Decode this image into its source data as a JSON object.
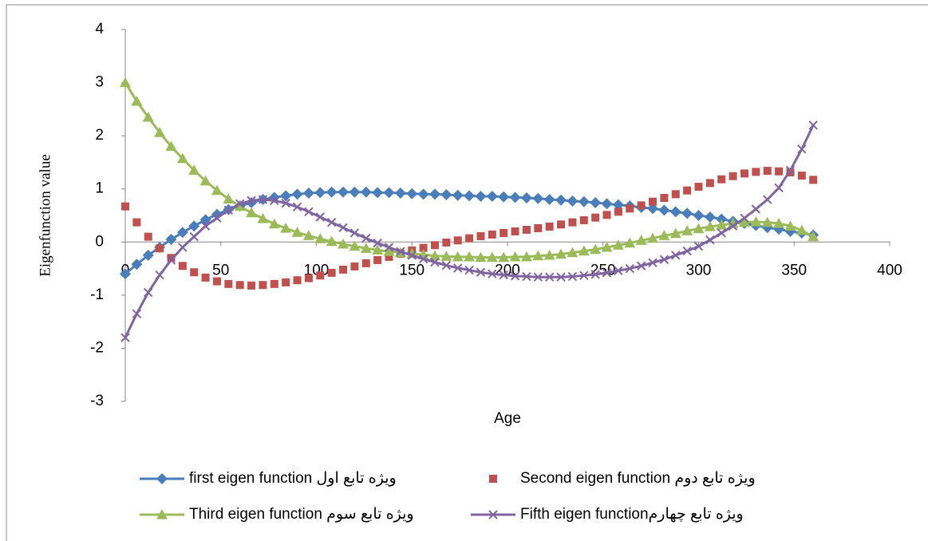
{
  "chart_data": {
    "type": "line",
    "x_label": "Age",
    "y_label": "Eigenfunction value",
    "xlim": [
      0,
      400
    ],
    "xticks": [
      0,
      50,
      100,
      150,
      200,
      250,
      300,
      350,
      400
    ],
    "ylim": [
      -3,
      4
    ],
    "yticks": [
      -3,
      -2,
      -1,
      0,
      1,
      2,
      3,
      4
    ],
    "x": [
      0,
      6,
      12,
      18,
      24,
      30,
      36,
      42,
      48,
      54,
      60,
      66,
      72,
      78,
      84,
      90,
      96,
      102,
      108,
      114,
      120,
      126,
      132,
      138,
      144,
      150,
      156,
      162,
      168,
      174,
      180,
      186,
      192,
      198,
      204,
      210,
      216,
      222,
      228,
      234,
      240,
      246,
      252,
      258,
      264,
      270,
      276,
      282,
      288,
      294,
      300,
      306,
      312,
      318,
      324,
      330,
      336,
      342,
      348,
      354,
      360
    ],
    "series": [
      {
        "name": "first eigen function ويژه تابع اول",
        "color": "#4a7ebb",
        "marker": "diamond",
        "line": true,
        "values": [
          -0.6,
          -0.42,
          -0.25,
          -0.1,
          0.05,
          0.18,
          0.3,
          0.42,
          0.52,
          0.61,
          0.68,
          0.74,
          0.8,
          0.84,
          0.87,
          0.9,
          0.92,
          0.93,
          0.94,
          0.94,
          0.94,
          0.94,
          0.93,
          0.93,
          0.92,
          0.91,
          0.9,
          0.9,
          0.89,
          0.88,
          0.87,
          0.86,
          0.86,
          0.85,
          0.84,
          0.83,
          0.82,
          0.8,
          0.79,
          0.77,
          0.76,
          0.74,
          0.72,
          0.7,
          0.68,
          0.65,
          0.63,
          0.6,
          0.57,
          0.54,
          0.5,
          0.47,
          0.43,
          0.39,
          0.35,
          0.31,
          0.27,
          0.24,
          0.2,
          0.17,
          0.13
        ]
      },
      {
        "name": "Second eigen function ويژه تابع دوم",
        "color": "#c0504d",
        "marker": "square",
        "line": false,
        "values": [
          0.67,
          0.37,
          0.1,
          -0.12,
          -0.3,
          -0.45,
          -0.57,
          -0.67,
          -0.74,
          -0.79,
          -0.81,
          -0.82,
          -0.81,
          -0.79,
          -0.76,
          -0.72,
          -0.68,
          -0.63,
          -0.58,
          -0.52,
          -0.46,
          -0.4,
          -0.34,
          -0.28,
          -0.22,
          -0.16,
          -0.11,
          -0.06,
          -0.01,
          0.03,
          0.07,
          0.11,
          0.14,
          0.17,
          0.2,
          0.23,
          0.26,
          0.29,
          0.33,
          0.37,
          0.41,
          0.46,
          0.51,
          0.57,
          0.63,
          0.69,
          0.76,
          0.83,
          0.9,
          0.97,
          1.04,
          1.11,
          1.18,
          1.24,
          1.29,
          1.32,
          1.34,
          1.33,
          1.31,
          1.25,
          1.17
        ]
      },
      {
        "name": "Third eigen function ويژه تابع سوم",
        "color": "#9bbb59",
        "marker": "triangle",
        "line": true,
        "values": [
          3.0,
          2.65,
          2.35,
          2.06,
          1.8,
          1.57,
          1.35,
          1.15,
          0.97,
          0.81,
          0.67,
          0.55,
          0.44,
          0.34,
          0.26,
          0.18,
          0.12,
          0.06,
          0.01,
          -0.04,
          -0.08,
          -0.12,
          -0.15,
          -0.18,
          -0.2,
          -0.22,
          -0.24,
          -0.26,
          -0.27,
          -0.28,
          -0.28,
          -0.29,
          -0.29,
          -0.29,
          -0.28,
          -0.28,
          -0.26,
          -0.25,
          -0.23,
          -0.2,
          -0.17,
          -0.14,
          -0.1,
          -0.06,
          -0.02,
          0.03,
          0.07,
          0.12,
          0.16,
          0.21,
          0.25,
          0.29,
          0.32,
          0.35,
          0.37,
          0.38,
          0.37,
          0.35,
          0.3,
          0.22,
          0.1
        ]
      },
      {
        "name": "Fifth eigen functionويژه تابع چهارم",
        "color": "#8064a2",
        "marker": "x",
        "line": true,
        "values": [
          -1.8,
          -1.35,
          -0.95,
          -0.62,
          -0.34,
          -0.1,
          0.1,
          0.3,
          0.45,
          0.6,
          0.72,
          0.78,
          0.8,
          0.78,
          0.73,
          0.66,
          0.57,
          0.47,
          0.37,
          0.27,
          0.17,
          0.07,
          -0.02,
          -0.1,
          -0.18,
          -0.25,
          -0.32,
          -0.38,
          -0.44,
          -0.49,
          -0.53,
          -0.57,
          -0.6,
          -0.62,
          -0.64,
          -0.65,
          -0.66,
          -0.66,
          -0.66,
          -0.65,
          -0.63,
          -0.61,
          -0.58,
          -0.54,
          -0.5,
          -0.45,
          -0.39,
          -0.33,
          -0.25,
          -0.17,
          -0.08,
          0.04,
          0.17,
          0.3,
          0.45,
          0.62,
          0.8,
          1.02,
          1.35,
          1.75,
          2.2
        ]
      }
    ]
  }
}
